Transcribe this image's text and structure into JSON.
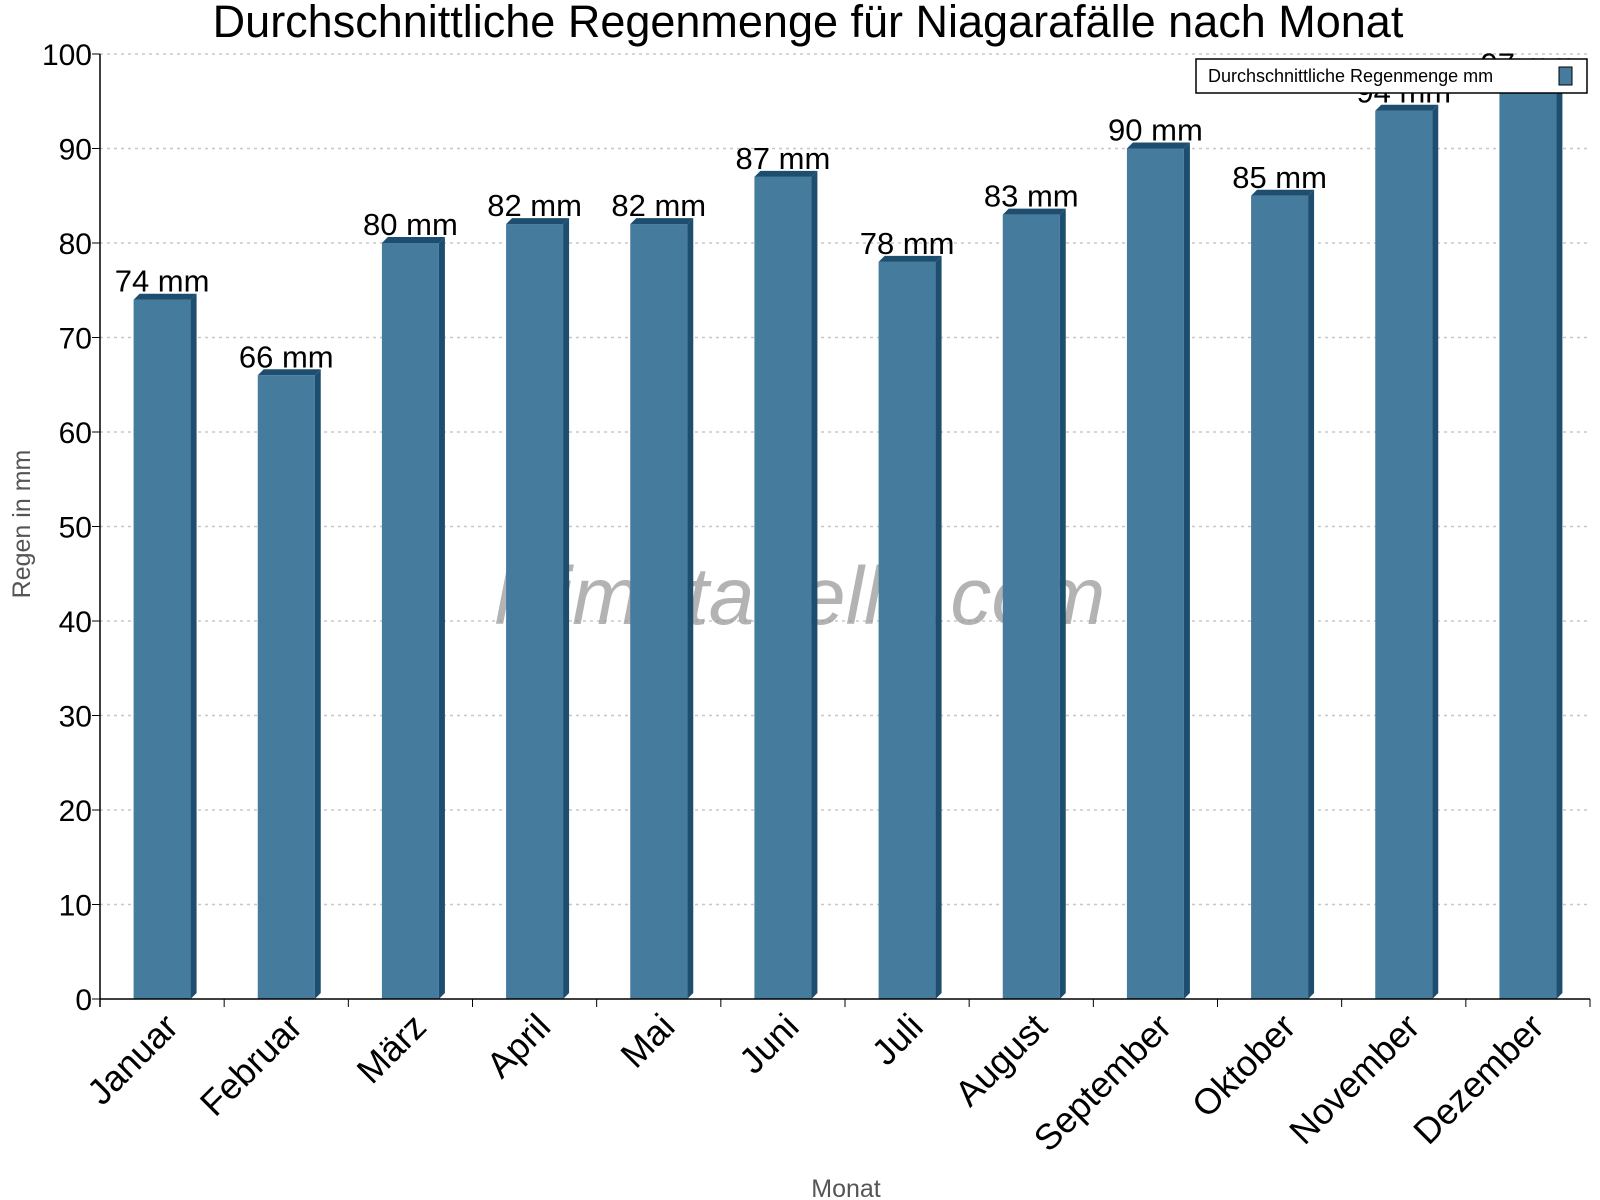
{
  "colors": {
    "bar_front": "#457b9d",
    "bar_side": "#1d4e6f",
    "bar_top": "#1d4e6f",
    "grid": "#c8c8c8",
    "axis": "#000000"
  },
  "watermark": "klimatabelle.com",
  "chart_data": {
    "type": "bar",
    "title": "Durchschnittliche Regenmenge für Niagarafälle nach Monat",
    "xlabel": "Monat",
    "ylabel": "Regen in mm",
    "ylim": [
      0,
      100
    ],
    "yticks": [
      0,
      10,
      20,
      30,
      40,
      50,
      60,
      70,
      80,
      90,
      100
    ],
    "grid": true,
    "legend_position": "top-right",
    "categories": [
      "Januar",
      "Februar",
      "März",
      "April",
      "Mai",
      "Juni",
      "Juli",
      "August",
      "September",
      "Oktober",
      "November",
      "Dezember"
    ],
    "series": [
      {
        "name": "Durchschnittliche Regenmenge mm",
        "values": [
          74,
          66,
          80,
          82,
          82,
          87,
          78,
          83,
          90,
          85,
          94,
          97
        ],
        "labels": [
          "74 mm",
          "66 mm",
          "80 mm",
          "82 mm",
          "82 mm",
          "87 mm",
          "78 mm",
          "83 mm",
          "90 mm",
          "85 mm",
          "94 mm",
          "97 mm"
        ]
      }
    ]
  }
}
